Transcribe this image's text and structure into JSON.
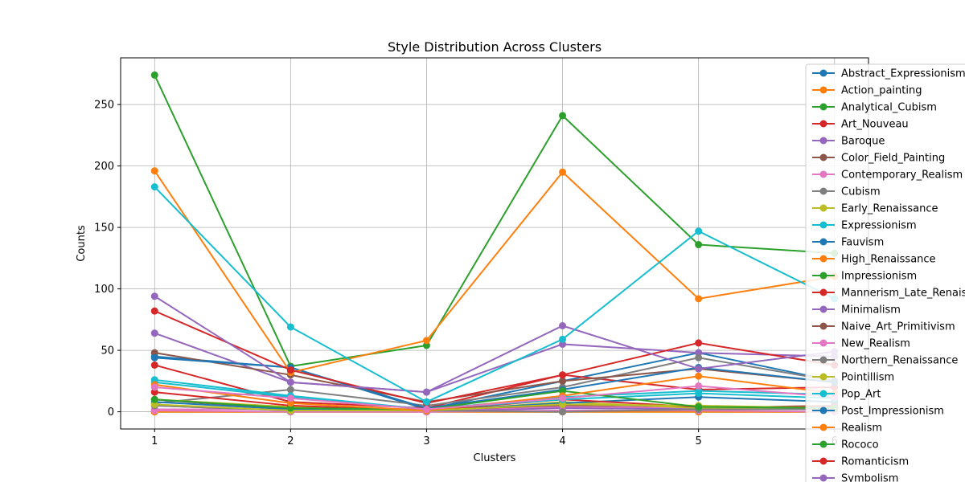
{
  "chart_data": {
    "type": "line",
    "title": "Style Distribution Across Clusters",
    "xlabel": "Clusters",
    "ylabel": "Counts",
    "x": [
      1,
      2,
      3,
      4,
      5,
      6
    ],
    "x_ticks": [
      "1",
      "2",
      "3",
      "4",
      "5",
      "6"
    ],
    "y_ticks": [
      "0",
      "50",
      "100",
      "150",
      "200",
      "250"
    ],
    "xlim": [
      0.75,
      6.25
    ],
    "ylim": [
      -14,
      288
    ],
    "grid": true,
    "legend_position": "right",
    "marker": "circle",
    "series": [
      {
        "name": "Abstract_Expressionism",
        "color": "#1f77b4",
        "values": [
          45,
          36,
          2,
          25,
          48,
          25
        ]
      },
      {
        "name": "Action_painting",
        "color": "#ff7f0e",
        "values": [
          0,
          0,
          0,
          0,
          0,
          0
        ]
      },
      {
        "name": "Analytical_Cubism",
        "color": "#2ca02c",
        "values": [
          0,
          0,
          0,
          0,
          0,
          0
        ]
      },
      {
        "name": "Art_Nouveau",
        "color": "#d62728",
        "values": [
          38,
          8,
          3,
          30,
          18,
          20
        ]
      },
      {
        "name": "Baroque",
        "color": "#9467bd",
        "values": [
          64,
          24,
          16,
          55,
          48,
          45
        ]
      },
      {
        "name": "Color_Field_Painting",
        "color": "#8c564b",
        "values": [
          10,
          2,
          0,
          5,
          3,
          5
        ]
      },
      {
        "name": "Contemporary_Realism",
        "color": "#e377c2",
        "values": [
          2,
          2,
          0,
          4,
          3,
          3
        ]
      },
      {
        "name": "Cubism",
        "color": "#7f7f7f",
        "values": [
          7,
          18,
          5,
          20,
          44,
          25
        ]
      },
      {
        "name": "Early_Renaissance",
        "color": "#bcbd22",
        "values": [
          10,
          4,
          0,
          8,
          3,
          3
        ]
      },
      {
        "name": "Expressionism",
        "color": "#17becf",
        "values": [
          26,
          13,
          2,
          12,
          17,
          14
        ]
      },
      {
        "name": "Fauvism",
        "color": "#1f77b4",
        "values": [
          8,
          2,
          1,
          7,
          12,
          8
        ]
      },
      {
        "name": "High_Renaissance",
        "color": "#ff7f0e",
        "values": [
          0,
          0,
          0,
          0,
          0,
          0
        ]
      },
      {
        "name": "Impressionism",
        "color": "#2ca02c",
        "values": [
          274,
          37,
          54,
          241,
          136,
          129
        ]
      },
      {
        "name": "Mannerism_Late_Renaissance",
        "color": "#d62728",
        "values": [
          16,
          5,
          1,
          10,
          4,
          4
        ]
      },
      {
        "name": "Minimalism",
        "color": "#9467bd",
        "values": [
          5,
          1,
          0,
          3,
          2,
          2
        ]
      },
      {
        "name": "Naive_Art_Primitivism",
        "color": "#8c564b",
        "values": [
          48,
          30,
          8,
          25,
          35,
          24
        ]
      },
      {
        "name": "New_Realism",
        "color": "#e377c2",
        "values": [
          1,
          0,
          0,
          1,
          1,
          0
        ]
      },
      {
        "name": "Northern_Renaissance",
        "color": "#7f7f7f",
        "values": [
          5,
          1,
          1,
          0,
          2,
          2
        ]
      },
      {
        "name": "Pointillism",
        "color": "#bcbd22",
        "values": [
          6,
          1,
          1,
          6,
          5,
          3
        ]
      },
      {
        "name": "Pop_Art",
        "color": "#17becf",
        "values": [
          24,
          12,
          2,
          10,
          15,
          11
        ]
      },
      {
        "name": "Post_Impressionism",
        "color": "#1f77b4",
        "values": [
          44,
          36,
          3,
          18,
          36,
          24
        ]
      },
      {
        "name": "Realism",
        "color": "#ff7f0e",
        "values": [
          196,
          32,
          58,
          195,
          92,
          110
        ]
      },
      {
        "name": "Rococo",
        "color": "#2ca02c",
        "values": [
          10,
          3,
          2,
          17,
          4,
          3
        ]
      },
      {
        "name": "Romanticism",
        "color": "#d62728",
        "values": [
          82,
          34,
          7,
          30,
          56,
          38
        ]
      },
      {
        "name": "Symbolism",
        "color": "#9467bd",
        "values": [
          94,
          24,
          16,
          70,
          35,
          49
        ]
      }
    ],
    "extra_lines": [
      {
        "color": "#17becf",
        "values": [
          183,
          69,
          8,
          59,
          147,
          92
        ]
      },
      {
        "color": "#ff7f0e",
        "values": [
          22,
          7,
          1,
          13,
          29,
          15
        ]
      },
      {
        "color": "#e377c2",
        "values": [
          20,
          11,
          2,
          11,
          21,
          12
        ]
      }
    ]
  }
}
